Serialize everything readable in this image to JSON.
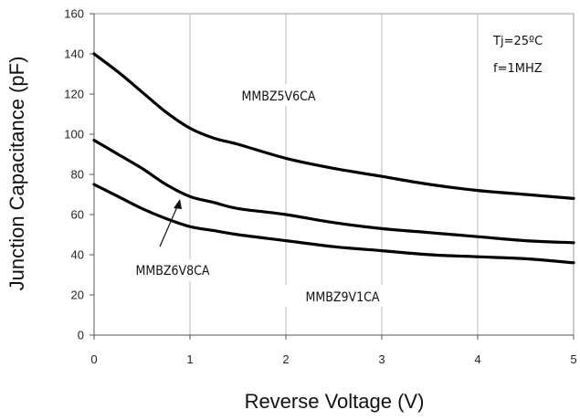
{
  "chart_data": {
    "type": "line",
    "title": "",
    "xlabel": "Reverse Voltage (V)",
    "ylabel": "Junction Capacitance (pF)",
    "xlim": [
      0,
      5
    ],
    "ylim": [
      0,
      160
    ],
    "xticks": [
      "0",
      "1",
      "2",
      "3",
      "4",
      "5"
    ],
    "yticks": [
      "0",
      "20",
      "40",
      "60",
      "80",
      "100",
      "120",
      "140",
      "160"
    ],
    "grid": "vertical",
    "conditions": [
      "Tj=25ºC",
      "f=1MHZ"
    ],
    "series": [
      {
        "name": "MMBZ5V6CA",
        "x": [
          0,
          0.25,
          0.5,
          0.75,
          1,
          1.25,
          1.5,
          2,
          2.5,
          3,
          3.5,
          4,
          4.5,
          5
        ],
        "y": [
          140,
          131,
          121,
          111,
          103,
          98,
          95,
          88,
          83,
          79,
          75,
          72,
          70,
          68
        ]
      },
      {
        "name": "MMBZ6V8CA",
        "x": [
          0,
          0.25,
          0.5,
          0.75,
          1,
          1.25,
          1.5,
          2,
          2.5,
          3,
          3.5,
          4,
          4.5,
          5
        ],
        "y": [
          97,
          90,
          83,
          75,
          69,
          66,
          63,
          60,
          56,
          53,
          51,
          49,
          47,
          46
        ]
      },
      {
        "name": "MMBZ9V1CA",
        "x": [
          0,
          0.25,
          0.5,
          0.75,
          1,
          1.25,
          1.5,
          2,
          2.5,
          3,
          3.5,
          4,
          4.5,
          5
        ],
        "y": [
          75,
          69,
          63,
          58,
          54,
          52,
          50,
          47,
          44,
          42,
          40,
          39,
          38,
          36
        ]
      }
    ]
  }
}
